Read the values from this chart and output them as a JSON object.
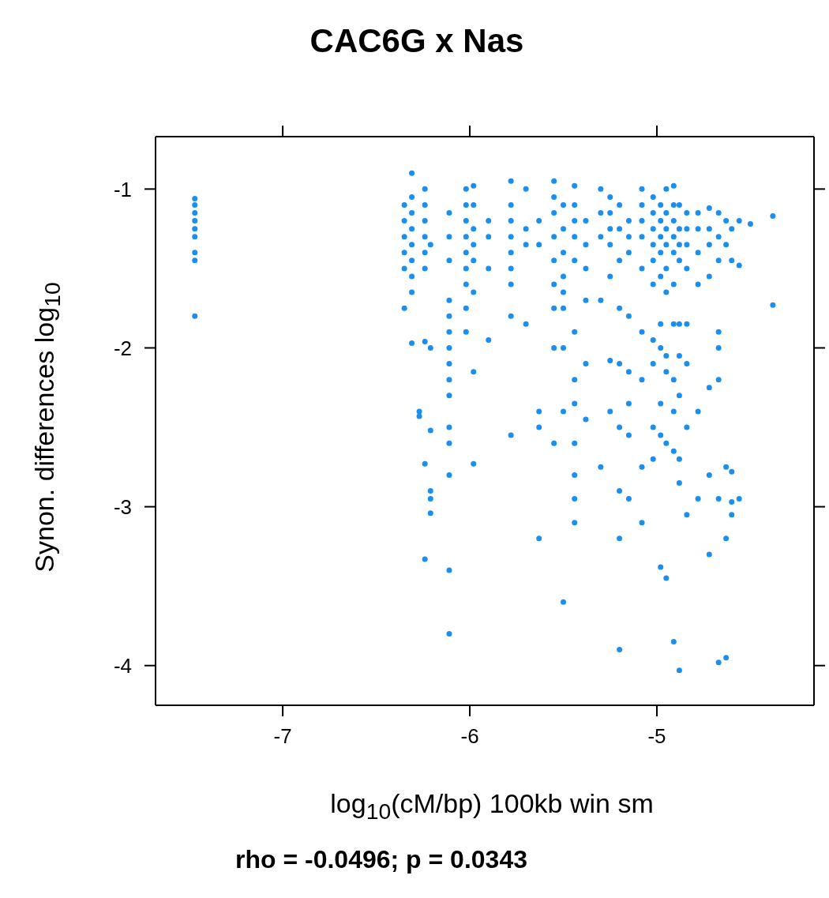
{
  "chart_data": {
    "type": "scatter",
    "title": "CAC6G x Nas",
    "xlabel": "log$_{10}$(cM/bp) 100kb win sm",
    "ylabel": "Synon. differences log$_{10}$",
    "annotations": [
      "rho = -0.0496; p = 0.0343"
    ],
    "xlim": [
      -7.68,
      -4.16
    ],
    "xticks": [
      -7,
      -6,
      -5
    ],
    "ylim": [
      -4.25,
      -0.67
    ],
    "yticks": [
      -4,
      -3,
      -2,
      -1
    ],
    "marker": "circle",
    "series": [
      {
        "color": "#1b8ff0",
        "x": [
          -7.47,
          -7.47,
          -7.47,
          -7.47,
          -7.47,
          -7.47,
          -7.47,
          -7.47,
          -7.47,
          -6.35,
          -6.35,
          -6.35,
          -6.35,
          -6.35,
          -6.35,
          -6.31,
          -6.31,
          -6.31,
          -6.31,
          -6.31,
          -6.31,
          -6.31,
          -6.31,
          -6.31,
          -6.27,
          -6.27,
          -6.24,
          -6.24,
          -6.24,
          -6.24,
          -6.24,
          -6.24,
          -6.24,
          -6.24,
          -6.24,
          -6.21,
          -6.21,
          -6.21,
          -6.21,
          -6.21,
          -6.21,
          -6.11,
          -6.11,
          -6.11,
          -6.11,
          -6.11,
          -6.11,
          -6.11,
          -6.11,
          -6.11,
          -6.11,
          -6.11,
          -6.11,
          -6.11,
          -6.11,
          -6.11,
          -6.02,
          -6.02,
          -6.02,
          -6.02,
          -6.02,
          -6.02,
          -6.02,
          -6.02,
          -6.02,
          -5.98,
          -5.98,
          -5.98,
          -5.98,
          -5.98,
          -5.98,
          -5.98,
          -5.98,
          -5.9,
          -5.9,
          -5.9,
          -5.9,
          -5.78,
          -5.78,
          -5.78,
          -5.78,
          -5.78,
          -5.78,
          -5.78,
          -5.78,
          -5.78,
          -5.7,
          -5.7,
          -5.7,
          -5.7,
          -5.63,
          -5.63,
          -5.63,
          -5.63,
          -5.63,
          -5.55,
          -5.55,
          -5.55,
          -5.55,
          -5.55,
          -5.55,
          -5.55,
          -5.55,
          -5.55,
          -5.5,
          -5.5,
          -5.5,
          -5.5,
          -5.5,
          -5.5,
          -5.5,
          -5.5,
          -5.5,
          -5.44,
          -5.44,
          -5.44,
          -5.44,
          -5.44,
          -5.44,
          -5.44,
          -5.44,
          -5.44,
          -5.44,
          -5.44,
          -5.44,
          -5.38,
          -5.38,
          -5.38,
          -5.38,
          -5.38,
          -5.38,
          -5.3,
          -5.3,
          -5.3,
          -5.3,
          -5.3,
          -5.25,
          -5.25,
          -5.25,
          -5.25,
          -5.25,
          -5.25,
          -5.25,
          -5.2,
          -5.2,
          -5.2,
          -5.2,
          -5.2,
          -5.2,
          -5.2,
          -5.2,
          -5.2,
          -5.15,
          -5.15,
          -5.15,
          -5.15,
          -5.15,
          -5.15,
          -5.15,
          -5.15,
          -5.08,
          -5.08,
          -5.08,
          -5.08,
          -5.08,
          -5.08,
          -5.08,
          -5.08,
          -5.08,
          -5.02,
          -5.02,
          -5.02,
          -5.02,
          -5.02,
          -5.02,
          -5.02,
          -5.02,
          -5.02,
          -5.02,
          -4.98,
          -4.98,
          -4.98,
          -4.98,
          -4.98,
          -4.98,
          -4.98,
          -4.98,
          -4.98,
          -4.98,
          -4.95,
          -4.95,
          -4.95,
          -4.95,
          -4.95,
          -4.95,
          -4.95,
          -4.95,
          -4.95,
          -4.95,
          -4.91,
          -4.91,
          -4.91,
          -4.91,
          -4.91,
          -4.91,
          -4.91,
          -4.91,
          -4.91,
          -4.91,
          -4.91,
          -4.88,
          -4.88,
          -4.88,
          -4.88,
          -4.88,
          -4.88,
          -4.88,
          -4.88,
          -4.88,
          -4.88,
          -4.84,
          -4.84,
          -4.84,
          -4.84,
          -4.84,
          -4.84,
          -4.84,
          -4.84,
          -4.78,
          -4.78,
          -4.78,
          -4.78,
          -4.78,
          -4.78,
          -4.72,
          -4.72,
          -4.72,
          -4.72,
          -4.72,
          -4.72,
          -4.72,
          -4.67,
          -4.67,
          -4.67,
          -4.67,
          -4.67,
          -4.67,
          -4.67,
          -4.67,
          -4.63,
          -4.63,
          -4.63,
          -4.63,
          -4.63,
          -4.6,
          -4.6,
          -4.6,
          -4.6,
          -4.6,
          -4.56,
          -4.56,
          -4.56,
          -4.5,
          -4.38,
          -4.38
        ],
        "values": [
          -1.06,
          -1.1,
          -1.15,
          -1.2,
          -1.25,
          -1.3,
          -1.4,
          -1.45,
          -1.8,
          -1.1,
          -1.2,
          -1.3,
          -1.4,
          -1.5,
          -1.75,
          -0.9,
          -1.05,
          -1.15,
          -1.25,
          -1.35,
          -1.45,
          -1.55,
          -1.65,
          -1.97,
          -2.4,
          -2.43,
          -1.0,
          -1.1,
          -1.2,
          -1.3,
          -1.4,
          -1.5,
          -1.96,
          -2.73,
          -3.33,
          -1.35,
          -2.0,
          -2.52,
          -2.9,
          -2.95,
          -3.04,
          -1.15,
          -1.3,
          -1.45,
          -1.7,
          -1.8,
          -1.9,
          -2.0,
          -2.1,
          -2.2,
          -2.3,
          -2.5,
          -2.6,
          -2.8,
          -3.4,
          -3.8,
          -1.0,
          -1.1,
          -1.2,
          -1.3,
          -1.4,
          -1.5,
          -1.6,
          -1.75,
          -1.9,
          -0.98,
          -1.1,
          -1.25,
          -1.35,
          -1.45,
          -1.65,
          -2.15,
          -2.73,
          -1.2,
          -1.3,
          -1.5,
          -1.95,
          -0.95,
          -1.1,
          -1.2,
          -1.3,
          -1.4,
          -1.5,
          -1.6,
          -1.8,
          -2.55,
          -1.0,
          -1.25,
          -1.35,
          -1.85,
          -1.2,
          -1.35,
          -2.4,
          -2.5,
          -3.2,
          -0.95,
          -1.05,
          -1.15,
          -1.3,
          -1.45,
          -1.6,
          -1.75,
          -2.0,
          -2.6,
          -1.1,
          -1.25,
          -1.4,
          -1.55,
          -1.65,
          -1.75,
          -2.0,
          -2.4,
          -3.6,
          -0.98,
          -1.1,
          -1.2,
          -1.3,
          -1.45,
          -1.9,
          -2.2,
          -2.35,
          -2.6,
          -2.8,
          -2.95,
          -3.1,
          -1.2,
          -1.35,
          -1.5,
          -1.7,
          -2.1,
          -2.45,
          -1.0,
          -1.15,
          -1.3,
          -1.7,
          -2.75,
          -1.05,
          -1.15,
          -1.25,
          -1.35,
          -1.55,
          -2.08,
          -2.4,
          -1.1,
          -1.25,
          -1.45,
          -1.75,
          -2.1,
          -2.5,
          -2.9,
          -3.2,
          -3.9,
          -1.2,
          -1.3,
          -1.4,
          -1.8,
          -2.15,
          -2.35,
          -2.55,
          -2.95,
          -1.0,
          -1.1,
          -1.2,
          -1.3,
          -1.5,
          -1.9,
          -2.2,
          -2.75,
          -3.1,
          -1.05,
          -1.15,
          -1.25,
          -1.35,
          -1.45,
          -1.6,
          -1.95,
          -2.1,
          -2.5,
          -2.7,
          -1.1,
          -1.2,
          -1.3,
          -1.4,
          -1.55,
          -1.85,
          -2.0,
          -2.35,
          -2.55,
          -3.38,
          -1.0,
          -1.15,
          -1.25,
          -1.35,
          -1.5,
          -1.65,
          -2.05,
          -2.15,
          -2.6,
          -3.45,
          -0.98,
          -1.1,
          -1.2,
          -1.3,
          -1.4,
          -1.6,
          -1.85,
          -2.2,
          -2.4,
          -2.65,
          -3.85,
          -1.1,
          -1.25,
          -1.35,
          -1.45,
          -1.85,
          -2.05,
          -2.3,
          -2.7,
          -2.85,
          -4.03,
          -1.15,
          -1.25,
          -1.35,
          -1.5,
          -1.85,
          -2.1,
          -2.5,
          -3.05,
          -1.15,
          -1.25,
          -1.4,
          -1.6,
          -2.4,
          -2.95,
          -1.12,
          -1.25,
          -1.35,
          -1.55,
          -2.25,
          -2.8,
          -3.3,
          -1.15,
          -1.3,
          -1.45,
          -1.9,
          -2.0,
          -2.2,
          -2.95,
          -3.98,
          -1.2,
          -1.35,
          -2.75,
          -3.2,
          -3.95,
          -1.25,
          -1.45,
          -2.78,
          -2.97,
          -3.05,
          -1.2,
          -1.48,
          -2.95,
          -1.22,
          -1.17,
          -1.73
        ]
      }
    ]
  }
}
